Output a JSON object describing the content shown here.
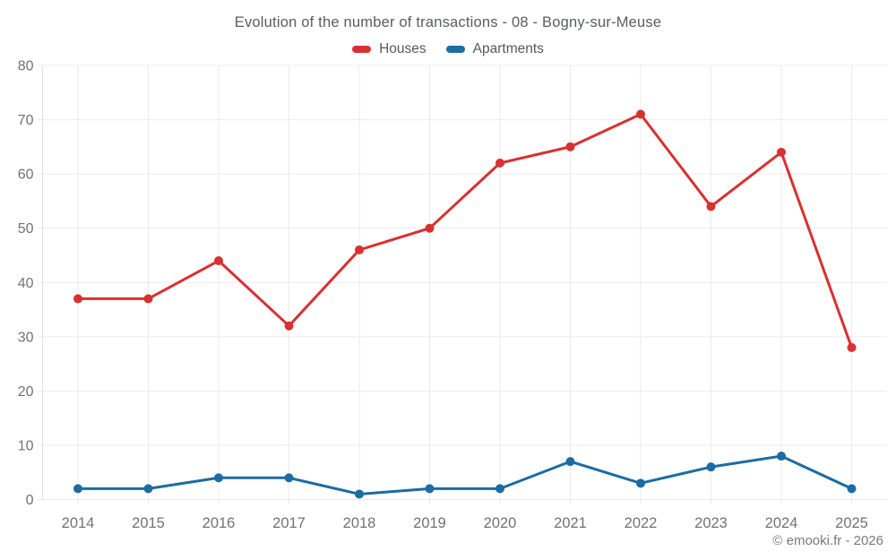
{
  "header": {
    "title": "Evolution of the number of transactions - 08 - Bogny-sur-Meuse"
  },
  "legend": {
    "items": [
      {
        "label": "Houses",
        "color": "#d93030"
      },
      {
        "label": "Apartments",
        "color": "#1a6ca3"
      }
    ]
  },
  "footer": {
    "credit": "© emooki.fr - 2026"
  },
  "chart_data": {
    "type": "line",
    "title": "Evolution of the number of transactions - 08 - Bogny-sur-Meuse",
    "categories": [
      "2014",
      "2015",
      "2016",
      "2017",
      "2018",
      "2019",
      "2020",
      "2021",
      "2022",
      "2023",
      "2024",
      "2025"
    ],
    "series": [
      {
        "name": "Houses",
        "color": "#d93030",
        "values": [
          37,
          37,
          44,
          32,
          46,
          50,
          62,
          65,
          71,
          54,
          64,
          28
        ]
      },
      {
        "name": "Apartments",
        "color": "#1a6ca3",
        "values": [
          2,
          2,
          4,
          4,
          1,
          2,
          2,
          7,
          3,
          6,
          8,
          2
        ]
      }
    ],
    "xlabel": "",
    "ylabel": "",
    "ylim": [
      0,
      80
    ],
    "ytick_step": 10,
    "grid": true,
    "legend_position": "top",
    "grid_color": "#ebebeb",
    "axis_color": "#e0e0e0",
    "tick_label_color": "#6f7275"
  }
}
